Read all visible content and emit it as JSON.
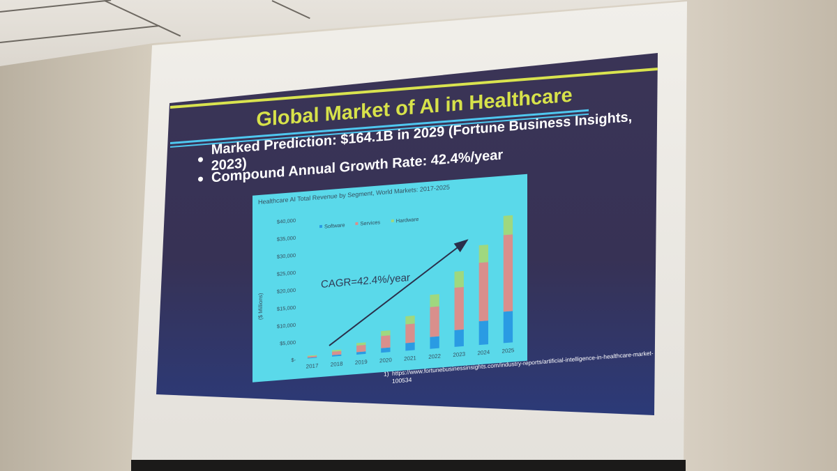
{
  "slide": {
    "title": "Global Market of AI in Healthcare",
    "bullets": [
      "Marked Prediction: $164.1B in 2029 (Fortune Business Insights, 2023)",
      "Compound Annual Growth Rate: 42.4%/year"
    ],
    "footnote_number": "1)",
    "footnote_text": "https://www.fortunebusinessinsights.com/industry-reports/artificial-intelligence-in-healthcare-market-100534"
  },
  "colors": {
    "title": "#d7e24a",
    "accent_bar": "#d9e34f",
    "rule": "#4fc8f0",
    "chart_bg": "#5ad9ea",
    "software": "#2a9be3",
    "services": "#d98f8c",
    "hardware": "#9fd87f"
  },
  "chart_data": {
    "type": "bar",
    "stacked": true,
    "title": "Healthcare AI Total Revenue by Segment, World Markets: 2017-2025",
    "ylabel": "($ Millions)",
    "xlabel": "",
    "categories": [
      "2017",
      "2018",
      "2019",
      "2020",
      "2021",
      "2022",
      "2023",
      "2024",
      "2025"
    ],
    "series": [
      {
        "name": "Software",
        "values": [
          200,
          400,
          700,
          1300,
          2200,
          3400,
          4800,
          6800,
          9000
        ]
      },
      {
        "name": "Services",
        "values": [
          400,
          1000,
          1900,
          3500,
          5400,
          8600,
          12200,
          16800,
          22000
        ]
      },
      {
        "name": "Hardware",
        "values": [
          200,
          400,
          700,
          1400,
          2300,
          3500,
          4600,
          5000,
          5500
        ]
      }
    ],
    "yticks": [
      "$-",
      "$5,000",
      "$10,000",
      "$15,000",
      "$20,000",
      "$25,000",
      "$30,000",
      "$35,000",
      "$40,000"
    ],
    "ylim": [
      0,
      40000
    ],
    "legend_position": "top-left",
    "annotation": "CAGR=42.4%/year",
    "grid": false
  }
}
